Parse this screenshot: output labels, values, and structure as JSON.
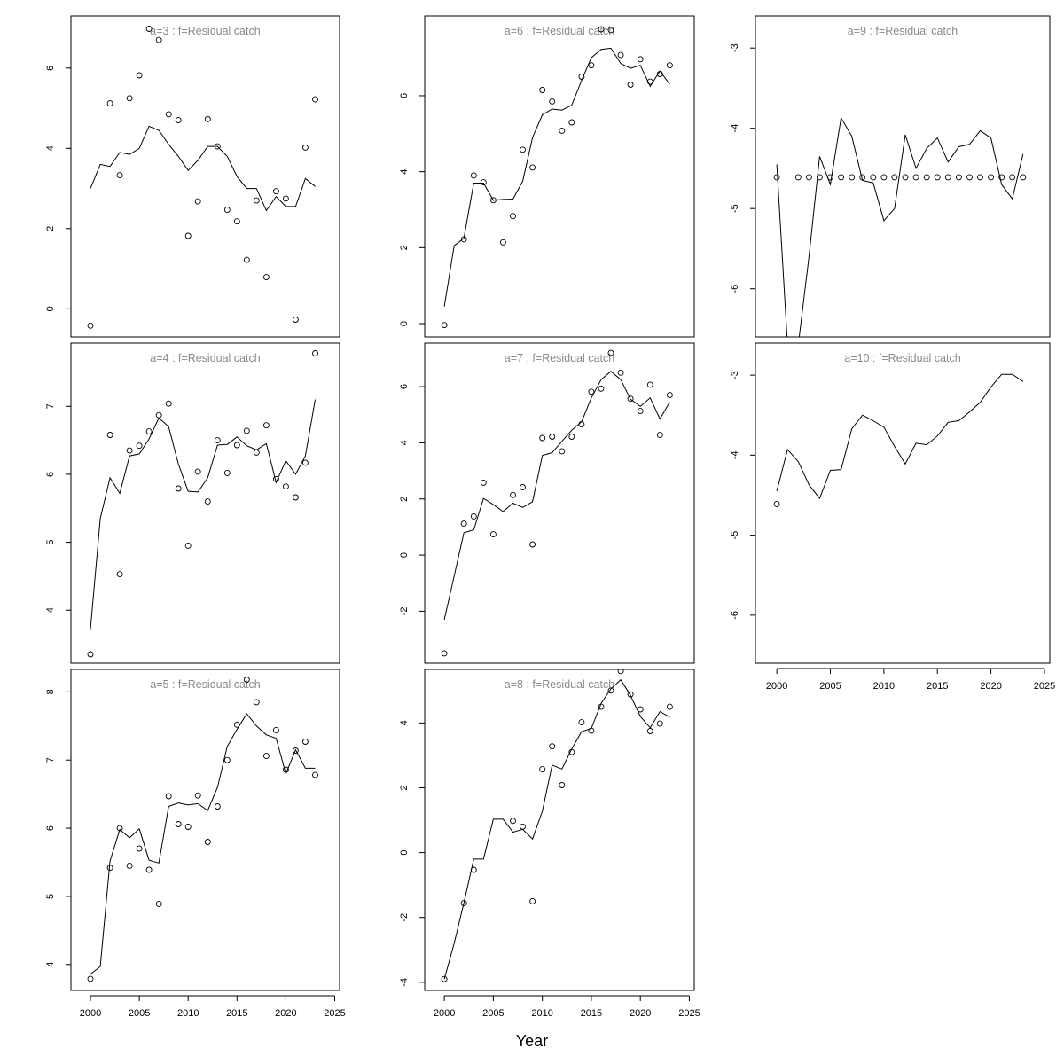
{
  "figure": {
    "xlabel": "Year",
    "colors": {
      "line": "#000000",
      "points": "#000000",
      "title": "#8a8a8a",
      "frame": "#000000"
    }
  },
  "chart_data": [
    {
      "type": "line",
      "title": "a=3  :  f=Residual catch",
      "x_range": [
        1998,
        2025.5
      ],
      "ylim": [
        -0.7,
        7.3
      ],
      "yticks": [
        0,
        2,
        4,
        6
      ],
      "xticks": [],
      "series": [
        {
          "style": "line",
          "x": [
            2000,
            2001,
            2002,
            2003,
            2004,
            2005,
            2006,
            2007,
            2008,
            2009,
            2010,
            2011,
            2012,
            2013,
            2014,
            2015,
            2016,
            2017,
            2018,
            2019,
            2020,
            2021,
            2022,
            2023
          ],
          "y": [
            3.0,
            3.6,
            3.55,
            3.9,
            3.85,
            4.0,
            4.55,
            4.45,
            4.1,
            3.8,
            3.45,
            3.7,
            4.05,
            4.05,
            3.8,
            3.3,
            3.0,
            3.0,
            2.45,
            2.8,
            2.55,
            2.55,
            3.25,
            3.05
          ]
        },
        {
          "style": "points",
          "x": [
            2000,
            2002,
            2003,
            2004,
            2005,
            2006,
            2007,
            2008,
            2009,
            2010,
            2011,
            2012,
            2013,
            2014,
            2015,
            2016,
            2017,
            2018,
            2019,
            2020,
            2021,
            2022,
            2023
          ],
          "y": [
            -0.42,
            5.12,
            3.33,
            5.25,
            5.82,
            6.98,
            6.7,
            4.85,
            4.7,
            1.82,
            2.68,
            4.73,
            4.05,
            2.47,
            2.18,
            1.22,
            2.7,
            0.79,
            2.93,
            2.75,
            -0.27,
            4.02,
            5.22
          ]
        }
      ]
    },
    {
      "type": "line",
      "title": "a=6  :  f=Residual catch",
      "x_range": [
        1998,
        2025.5
      ],
      "ylim": [
        -0.35,
        8.1
      ],
      "yticks": [
        0,
        2,
        4,
        6
      ],
      "xticks": [],
      "series": [
        {
          "style": "line",
          "x": [
            2000,
            2001,
            2002,
            2003,
            2004,
            2005,
            2006,
            2007,
            2008,
            2009,
            2010,
            2011,
            2012,
            2013,
            2014,
            2015,
            2016,
            2017,
            2018,
            2019,
            2020,
            2021,
            2022,
            2023
          ],
          "y": [
            0.45,
            2.05,
            2.25,
            3.7,
            3.7,
            3.25,
            3.27,
            3.28,
            3.75,
            4.9,
            5.5,
            5.65,
            5.62,
            5.75,
            6.4,
            7.0,
            7.22,
            7.25,
            6.85,
            6.72,
            6.8,
            6.25,
            6.65,
            6.3
          ]
        },
        {
          "style": "points",
          "x": [
            2000,
            2002,
            2003,
            2004,
            2005,
            2006,
            2007,
            2008,
            2009,
            2010,
            2011,
            2012,
            2013,
            2014,
            2015,
            2016,
            2017,
            2018,
            2019,
            2020,
            2021,
            2022,
            2023
          ],
          "y": [
            -0.04,
            2.22,
            3.9,
            3.72,
            3.25,
            2.14,
            2.83,
            4.58,
            4.11,
            6.15,
            5.85,
            5.08,
            5.3,
            6.5,
            6.8,
            7.75,
            7.73,
            7.07,
            6.29,
            6.96,
            6.37,
            6.57,
            6.8
          ]
        }
      ]
    },
    {
      "type": "line",
      "title": "a=9  :  f=Residual catch",
      "x_range": [
        1998,
        2025.5
      ],
      "ylim": [
        -6.6,
        -2.6
      ],
      "yticks": [
        -6,
        -5,
        -4,
        -3
      ],
      "xticks": [],
      "series": [
        {
          "style": "line",
          "x": [
            2000,
            2001,
            2002,
            2003,
            2004,
            2005,
            2006,
            2007,
            2008,
            2009,
            2010,
            2011,
            2012,
            2013,
            2014,
            2015,
            2016,
            2017,
            2018,
            2019,
            2020,
            2021,
            2022,
            2023
          ],
          "y": [
            -4.45,
            -6.7,
            -6.7,
            -5.6,
            -4.35,
            -4.7,
            -3.87,
            -4.1,
            -4.65,
            -4.68,
            -5.15,
            -5.0,
            -4.08,
            -4.5,
            -4.25,
            -4.12,
            -4.42,
            -4.23,
            -4.2,
            -4.03,
            -4.12,
            -4.7,
            -4.88,
            -4.32
          ]
        },
        {
          "style": "points",
          "x": [
            2000,
            2002,
            2003,
            2004,
            2005,
            2006,
            2007,
            2008,
            2009,
            2010,
            2011,
            2012,
            2013,
            2014,
            2015,
            2016,
            2017,
            2018,
            2019,
            2020,
            2021,
            2022,
            2023
          ],
          "y": [
            -4.61,
            -4.61,
            -4.61,
            -4.61,
            -4.61,
            -4.61,
            -4.61,
            -4.61,
            -4.61,
            -4.61,
            -4.61,
            -4.61,
            -4.61,
            -4.61,
            -4.61,
            -4.61,
            -4.61,
            -4.61,
            -4.61,
            -4.61,
            -4.61,
            -4.61,
            -4.61
          ]
        }
      ]
    },
    {
      "type": "line",
      "title": "a=4  :  f=Residual catch",
      "x_range": [
        1998,
        2025.5
      ],
      "ylim": [
        3.22,
        7.93
      ],
      "yticks": [
        4,
        5,
        6,
        7
      ],
      "xticks": [],
      "series": [
        {
          "style": "line",
          "x": [
            2000,
            2001,
            2002,
            2003,
            2004,
            2005,
            2006,
            2007,
            2008,
            2009,
            2010,
            2011,
            2012,
            2013,
            2014,
            2015,
            2016,
            2017,
            2018,
            2019,
            2020,
            2021,
            2022,
            2023
          ],
          "y": [
            3.72,
            5.35,
            5.95,
            5.72,
            6.27,
            6.3,
            6.52,
            6.83,
            6.7,
            6.15,
            5.75,
            5.74,
            5.95,
            6.43,
            6.44,
            6.55,
            6.42,
            6.36,
            6.45,
            5.88,
            6.2,
            6.0,
            6.27,
            7.1
          ]
        },
        {
          "style": "points",
          "x": [
            2000,
            2002,
            2003,
            2004,
            2005,
            2006,
            2007,
            2008,
            2009,
            2010,
            2011,
            2012,
            2013,
            2014,
            2015,
            2016,
            2017,
            2018,
            2019,
            2020,
            2021,
            2022,
            2023
          ],
          "y": [
            3.35,
            6.58,
            4.53,
            6.35,
            6.42,
            6.63,
            6.87,
            7.04,
            5.79,
            4.95,
            6.04,
            5.6,
            6.5,
            6.02,
            6.43,
            6.64,
            6.32,
            6.72,
            5.93,
            5.82,
            5.66,
            6.17,
            7.78
          ]
        }
      ]
    },
    {
      "type": "line",
      "title": "a=7  :  f=Residual catch",
      "x_range": [
        1998,
        2025.5
      ],
      "ylim": [
        -3.85,
        7.55
      ],
      "yticks": [
        -2,
        0,
        2,
        4,
        6
      ],
      "xticks": [],
      "series": [
        {
          "style": "line",
          "x": [
            2000,
            2001,
            2002,
            2003,
            2004,
            2005,
            2006,
            2007,
            2008,
            2009,
            2010,
            2011,
            2012,
            2013,
            2014,
            2015,
            2016,
            2017,
            2018,
            2019,
            2020,
            2021,
            2022,
            2023
          ],
          "y": [
            -2.3,
            -0.75,
            0.8,
            0.9,
            2.02,
            1.8,
            1.55,
            1.85,
            1.7,
            1.9,
            3.55,
            3.65,
            4.05,
            4.45,
            4.75,
            5.6,
            6.25,
            6.55,
            6.25,
            5.55,
            5.3,
            5.6,
            4.85,
            5.45
          ]
        },
        {
          "style": "points",
          "x": [
            2000,
            2002,
            2003,
            2004,
            2005,
            2007,
            2008,
            2009,
            2010,
            2011,
            2012,
            2013,
            2014,
            2015,
            2016,
            2017,
            2018,
            2019,
            2020,
            2021,
            2022,
            2023
          ],
          "y": [
            -3.5,
            1.12,
            1.38,
            2.58,
            0.74,
            2.14,
            2.42,
            0.38,
            4.17,
            4.22,
            3.7,
            4.22,
            4.66,
            5.82,
            5.93,
            7.2,
            6.5,
            5.57,
            5.13,
            6.07,
            4.28,
            5.7
          ]
        }
      ]
    },
    {
      "type": "line",
      "title": "a=10  :  f=Residual catch",
      "x_range": [
        1998,
        2025.5
      ],
      "ylim": [
        -6.6,
        -2.6
      ],
      "yticks": [
        -6,
        -5,
        -4,
        -3
      ],
      "xticks": [
        2000,
        2005,
        2010,
        2015,
        2020,
        2025
      ],
      "series": [
        {
          "style": "line",
          "x": [
            2000,
            2001,
            2002,
            2003,
            2004,
            2005,
            2006,
            2007,
            2008,
            2009,
            2010,
            2011,
            2012,
            2013,
            2014,
            2015,
            2016,
            2017,
            2018,
            2019,
            2020,
            2021,
            2022,
            2023
          ],
          "y": [
            -4.45,
            -3.93,
            -4.08,
            -4.37,
            -4.54,
            -4.19,
            -4.18,
            -3.67,
            -3.5,
            -3.57,
            -3.65,
            -3.89,
            -4.11,
            -3.85,
            -3.87,
            -3.76,
            -3.59,
            -3.57,
            -3.46,
            -3.34,
            -3.15,
            -2.99,
            -2.99,
            -3.08
          ]
        },
        {
          "style": "points",
          "x": [
            2000
          ],
          "y": [
            -4.61
          ]
        }
      ]
    },
    {
      "type": "line",
      "title": "a=5  :  f=Residual catch",
      "x_range": [
        1998,
        2025.5
      ],
      "ylim": [
        3.62,
        8.33
      ],
      "yticks": [
        4,
        5,
        6,
        7,
        8
      ],
      "xticks": [
        2000,
        2005,
        2010,
        2015,
        2020,
        2025
      ],
      "series": [
        {
          "style": "line",
          "x": [
            2000,
            2001,
            2002,
            2003,
            2004,
            2005,
            2006,
            2007,
            2008,
            2009,
            2010,
            2011,
            2012,
            2013,
            2014,
            2015,
            2016,
            2017,
            2018,
            2019,
            2020,
            2021,
            2022,
            2023
          ],
          "y": [
            3.86,
            3.97,
            5.52,
            5.98,
            5.86,
            5.99,
            5.53,
            5.49,
            6.32,
            6.37,
            6.34,
            6.36,
            6.26,
            6.6,
            7.2,
            7.45,
            7.68,
            7.5,
            7.37,
            7.32,
            6.8,
            7.15,
            6.88,
            6.88
          ]
        },
        {
          "style": "points",
          "x": [
            2000,
            2002,
            2003,
            2004,
            2005,
            2006,
            2007,
            2008,
            2009,
            2010,
            2011,
            2012,
            2013,
            2014,
            2015,
            2016,
            2017,
            2018,
            2019,
            2020,
            2021,
            2022,
            2023
          ],
          "y": [
            3.79,
            5.42,
            6.0,
            5.45,
            5.7,
            5.39,
            4.89,
            6.47,
            6.06,
            6.02,
            6.48,
            5.8,
            6.32,
            7.0,
            7.52,
            8.18,
            7.85,
            7.06,
            7.44,
            6.86,
            7.14,
            7.27,
            6.78
          ]
        }
      ]
    },
    {
      "type": "line",
      "title": "a=8  :  f=Residual catch",
      "x_range": [
        1998,
        2025.5
      ],
      "ylim": [
        -4.25,
        5.65
      ],
      "yticks": [
        -4,
        -2,
        0,
        2,
        4
      ],
      "xticks": [
        2000,
        2005,
        2010,
        2015,
        2020,
        2025
      ],
      "series": [
        {
          "style": "line",
          "x": [
            2000,
            2001,
            2002,
            2003,
            2004,
            2005,
            2006,
            2007,
            2008,
            2009,
            2010,
            2011,
            2012,
            2013,
            2014,
            2015,
            2016,
            2017,
            2018,
            2019,
            2020,
            2021,
            2022,
            2023
          ],
          "y": [
            -3.9,
            -2.8,
            -1.55,
            -0.2,
            -0.2,
            1.03,
            1.03,
            0.63,
            0.72,
            0.42,
            1.28,
            2.7,
            2.58,
            3.2,
            3.73,
            3.83,
            4.6,
            5.05,
            5.33,
            4.85,
            4.2,
            3.85,
            4.35,
            4.18
          ]
        },
        {
          "style": "points",
          "x": [
            2000,
            2002,
            2003,
            2007,
            2008,
            2009,
            2010,
            2011,
            2012,
            2013,
            2014,
            2015,
            2016,
            2017,
            2018,
            2019,
            2020,
            2021,
            2022,
            2023
          ],
          "y": [
            -3.9,
            -1.56,
            -0.53,
            0.98,
            0.8,
            -1.5,
            2.57,
            3.28,
            2.08,
            3.1,
            4.02,
            3.76,
            4.5,
            5.0,
            5.6,
            4.88,
            4.42,
            3.75,
            3.98,
            4.5
          ]
        }
      ]
    }
  ]
}
